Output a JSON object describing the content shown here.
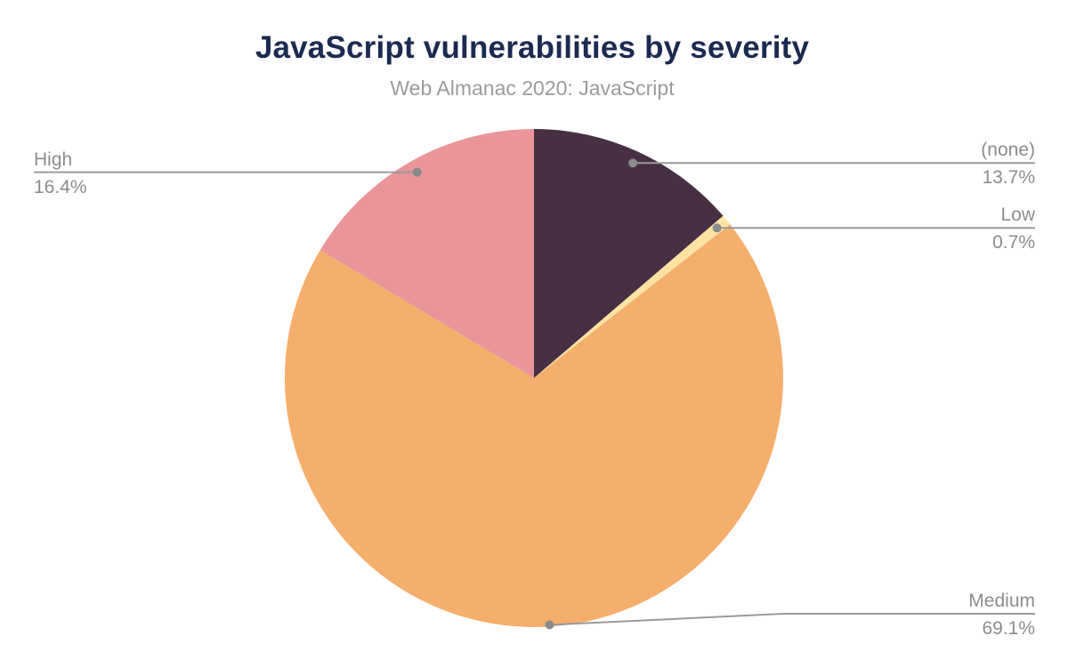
{
  "chart_data": {
    "type": "pie",
    "title": "JavaScript vulnerabilities by severity",
    "subtitle": "Web Almanac 2020: JavaScript",
    "start_angle_deg": 0,
    "direction": "clockwise",
    "legend_position": "none",
    "labels_style": "outside-callouts",
    "slices": [
      {
        "label": "(none)",
        "value": 13.7,
        "pct_label": "13.7%",
        "color": "#473043",
        "side": "right"
      },
      {
        "label": "Low",
        "value": 0.7,
        "pct_label": "0.7%",
        "color": "#FCE3A4",
        "side": "right"
      },
      {
        "label": "Medium",
        "value": 69.1,
        "pct_label": "69.1%",
        "color": "#F5AE6B",
        "side": "right"
      },
      {
        "label": "High",
        "value": 16.4,
        "pct_label": "16.4%",
        "color": "#E9959A",
        "side": "left"
      }
    ],
    "colors": {
      "title": "#1b2a50",
      "subtitle": "#9b9b9b",
      "label_text": "#8c8c8c",
      "leader_line": "#9a9a9a",
      "leader_dot": "#8a8a8a",
      "background": "#ffffff"
    }
  }
}
